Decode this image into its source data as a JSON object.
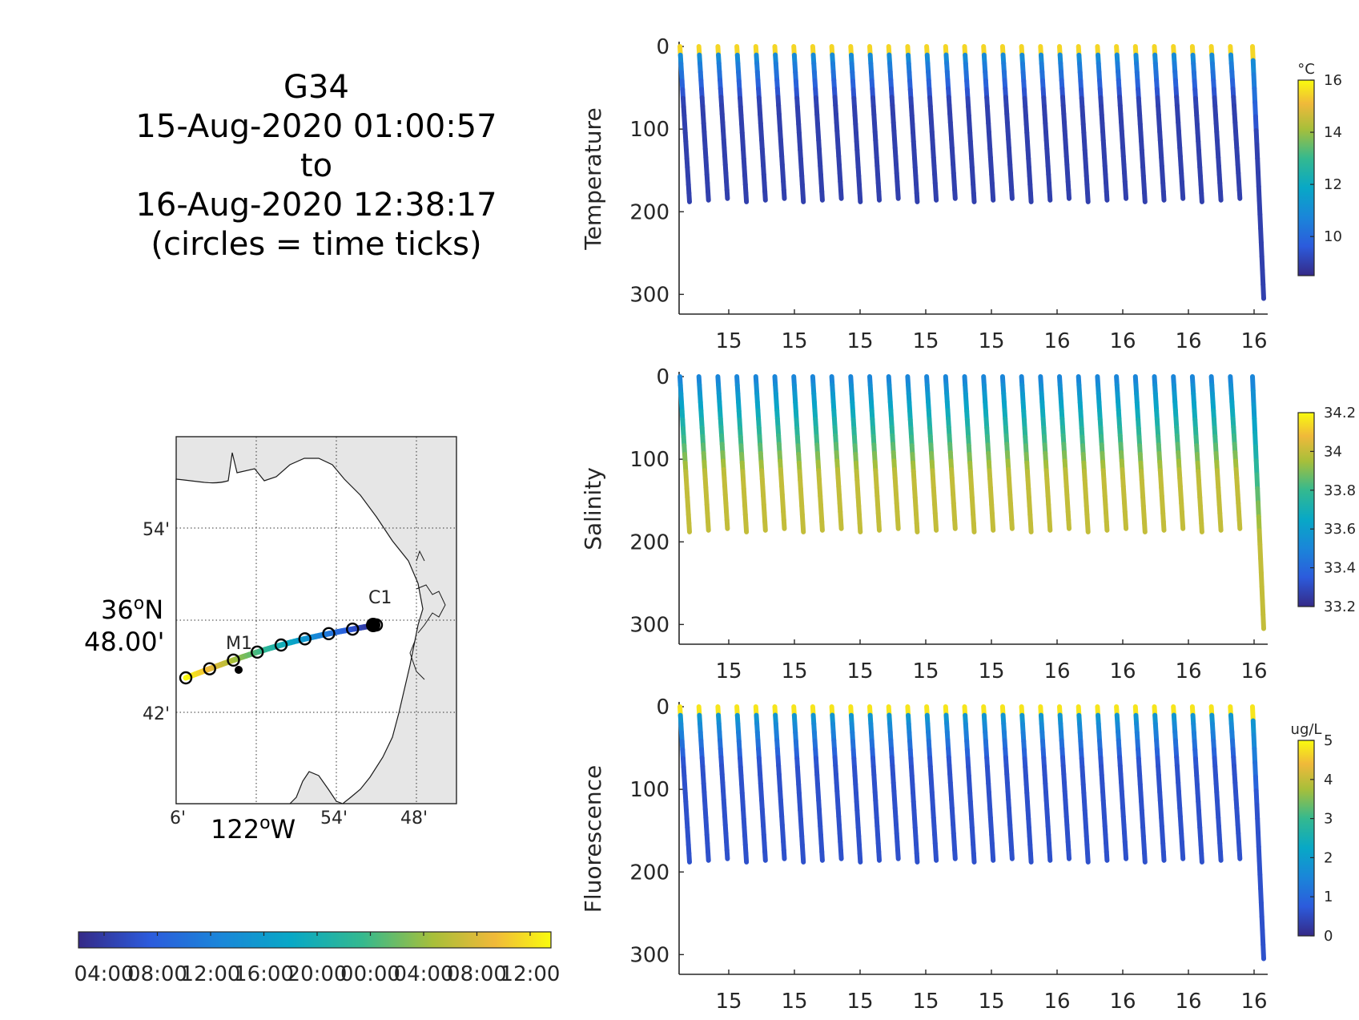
{
  "title": {
    "lines": [
      "G34",
      "15-Aug-2020 01:00:57",
      "to",
      "16-Aug-2020 12:38:17",
      "(circles = time ticks)"
    ]
  },
  "map": {
    "lat_ticks": [
      "54'",
      "36",
      "N",
      "48.00'",
      "42'"
    ],
    "lat_center": {
      "deg": "36",
      "sup": "o",
      "dir": "N",
      "min": "48.00'"
    },
    "lon_ticks": [
      "6'",
      "54'",
      "48'"
    ],
    "lon_center": {
      "deg": "122",
      "sup": "o",
      "dir": "W"
    },
    "stations": [
      "M1",
      "C1"
    ],
    "background": "#e6e6e6",
    "track_circles": 9
  },
  "time_colorbar": {
    "ticks": [
      "04:00",
      "08:00",
      "12:00",
      "16:00",
      "20:00",
      "00:00",
      "04:00",
      "08:00",
      "12:00"
    ],
    "colormap": "parula"
  },
  "chart_data": [
    {
      "type": "scatter",
      "ylabel": "Temperature",
      "yticks": [
        "0",
        "100",
        "200",
        "300"
      ],
      "ylim": [
        0,
        320
      ],
      "y_reversed": true,
      "xticks": [
        "15",
        "15",
        "15",
        "15",
        "15",
        "16",
        "16",
        "16",
        "16"
      ],
      "colorbar": {
        "unit": "°C",
        "ticks": [
          "16",
          "14",
          "12",
          "10"
        ],
        "range": [
          8.5,
          16
        ]
      },
      "profile_max_depth": 188,
      "last_dive_depth": 305,
      "profiles": 31,
      "surface_value": 15.5,
      "bottom_value": 9
    },
    {
      "type": "scatter",
      "ylabel": "Salinity",
      "yticks": [
        "0",
        "100",
        "200",
        "300"
      ],
      "ylim": [
        0,
        320
      ],
      "y_reversed": true,
      "xticks": [
        "15",
        "15",
        "15",
        "15",
        "15",
        "16",
        "16",
        "16",
        "16"
      ],
      "colorbar": {
        "unit": "",
        "ticks": [
          "34.2",
          "34",
          "33.8",
          "33.6",
          "33.4",
          "33.2"
        ],
        "range": [
          33.2,
          34.2
        ]
      },
      "profile_max_depth": 188,
      "last_dive_depth": 305,
      "profiles": 31,
      "surface_value": 33.5,
      "bottom_value": 34.0
    },
    {
      "type": "scatter",
      "ylabel": "Fluorescence",
      "yticks": [
        "0",
        "100",
        "200",
        "300"
      ],
      "ylim": [
        0,
        320
      ],
      "y_reversed": true,
      "xticks": [
        "15",
        "15",
        "15",
        "15",
        "15",
        "16",
        "16",
        "16",
        "16"
      ],
      "colorbar": {
        "unit": "ug/L",
        "ticks": [
          "5",
          "4",
          "3",
          "2",
          "1",
          "0"
        ],
        "range": [
          0,
          5
        ]
      },
      "profile_max_depth": 188,
      "last_dive_depth": 305,
      "profiles": 31,
      "surface_value": 4.8,
      "bottom_value": 0.6
    }
  ]
}
